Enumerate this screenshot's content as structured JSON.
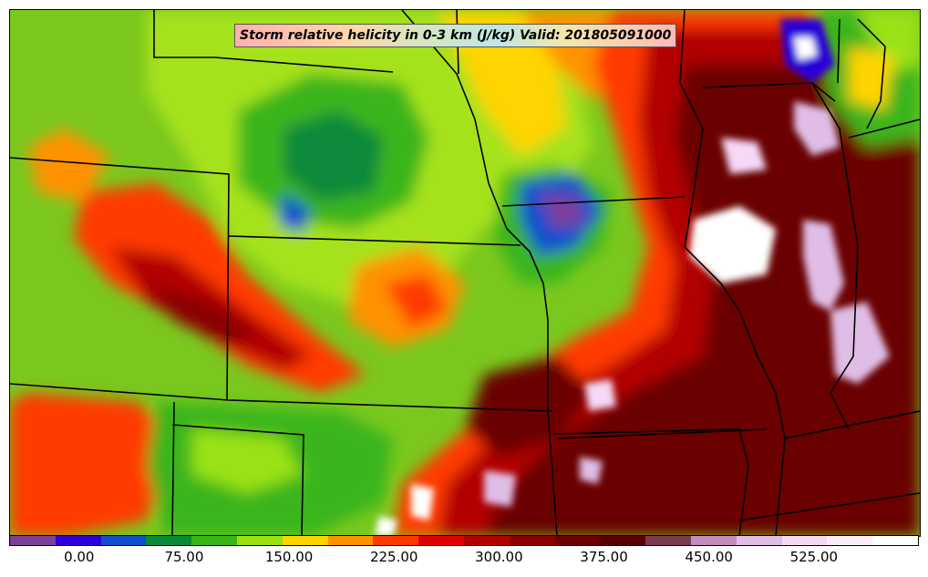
{
  "title": "Storm relative helicity in 0-3 km (J/kg) Valid: 201805091000",
  "colorbar": {
    "min": -50,
    "max": 600,
    "colors": [
      "#7b3f9c",
      "#2c00d9",
      "#0f4fd0",
      "#0b8a3a",
      "#3ab51a",
      "#9ae214",
      "#ffd400",
      "#ff9200",
      "#ff3a00",
      "#e00000",
      "#b20000",
      "#8a0000",
      "#6a0000",
      "#5a0000",
      "#7a3a52",
      "#c38cbe",
      "#e0bde6",
      "#f5d9f5",
      "#fcecfb",
      "#ffffff"
    ],
    "tick_values": [
      0,
      75,
      150,
      225,
      300,
      375,
      450,
      525
    ],
    "tick_labels": [
      "0.00",
      "75.00",
      "150.00",
      "225.00",
      "300.00",
      "375.00",
      "450.00",
      "525.00"
    ]
  }
}
